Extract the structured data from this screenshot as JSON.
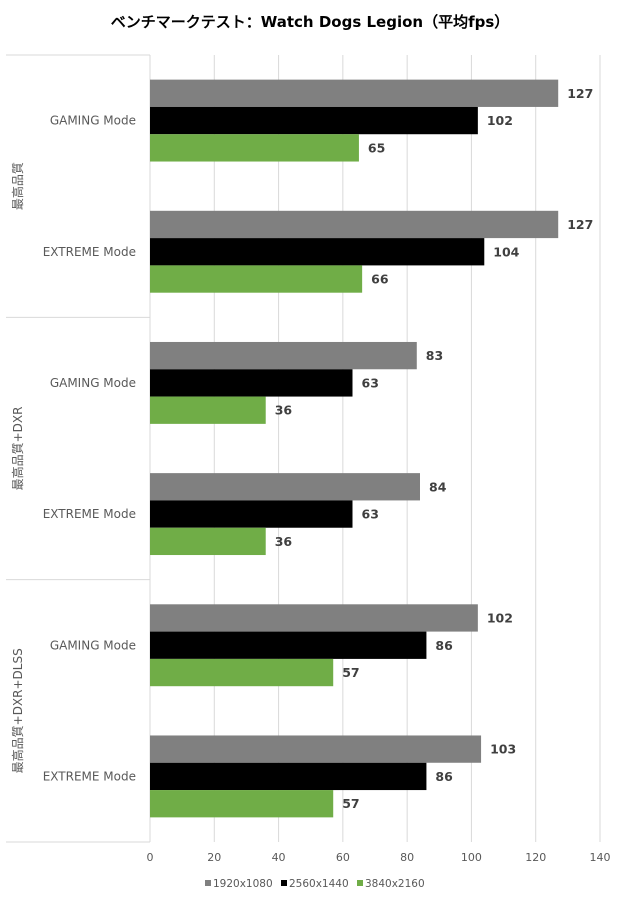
{
  "chart_data": {
    "type": "bar",
    "orientation": "horizontal",
    "title": "ベンチマークテスト：Watch Dogs Legion（平均fps）",
    "xlabel": "",
    "ylabel": "",
    "xlim": [
      0,
      140
    ],
    "xticks": [
      0,
      20,
      40,
      60,
      80,
      100,
      120,
      140
    ],
    "grid": true,
    "legend_position": "bottom",
    "groups": [
      {
        "label": "最高品質",
        "categories": [
          "GAMING Mode",
          "EXTREME Mode"
        ]
      },
      {
        "label": "最高品質+DXR",
        "categories": [
          "GAMING Mode",
          "EXTREME Mode"
        ]
      },
      {
        "label": "最高品質+DXR+DLSS",
        "categories": [
          "GAMING Mode",
          "EXTREME Mode"
        ]
      }
    ],
    "categories": [
      "最高品質 / GAMING Mode",
      "最高品質 / EXTREME Mode",
      "最高品質+DXR / GAMING Mode",
      "最高品質+DXR / EXTREME Mode",
      "最高品質+DXR+DLSS / GAMING Mode",
      "最高品質+DXR+DLSS / EXTREME Mode"
    ],
    "series": [
      {
        "name": "1920x1080",
        "color": "#808080",
        "values": [
          127,
          127,
          83,
          84,
          102,
          103
        ]
      },
      {
        "name": "2560x1440",
        "color": "#000000",
        "values": [
          102,
          104,
          63,
          63,
          86,
          86
        ]
      },
      {
        "name": "3840x2160",
        "color": "#70ad47",
        "values": [
          65,
          66,
          36,
          36,
          57,
          57
        ]
      }
    ]
  }
}
